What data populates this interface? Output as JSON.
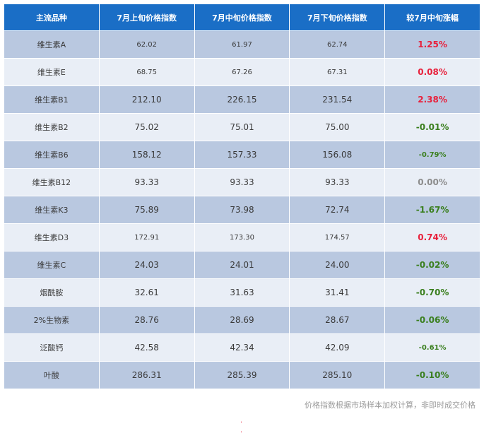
{
  "table": {
    "headers": [
      "主流品种",
      "7月上旬价格指数",
      "7月中旬价格指数",
      "7月下旬价格指数",
      "较7月中旬涨幅"
    ],
    "rows": [
      {
        "name": "维生素A",
        "v1": "62.02",
        "v2": "61.97",
        "v3": "62.74",
        "change": "1.25%",
        "trend": "up",
        "small": true
      },
      {
        "name": "维生素E",
        "v1": "68.75",
        "v2": "67.26",
        "v3": "67.31",
        "change": "0.08%",
        "trend": "up",
        "small": true
      },
      {
        "name": "维生素B1",
        "v1": "212.10",
        "v2": "226.15",
        "v3": "231.54",
        "change": "2.38%",
        "trend": "up",
        "small": false
      },
      {
        "name": "维生素B2",
        "v1": "75.02",
        "v2": "75.01",
        "v3": "75.00",
        "change": "-0.01%",
        "trend": "down",
        "small": false
      },
      {
        "name": "维生素B6",
        "v1": "158.12",
        "v2": "157.33",
        "v3": "156.08",
        "change": "-0.79%",
        "trend": "down",
        "small": false,
        "small_change": true
      },
      {
        "name": "维生素B12",
        "v1": "93.33",
        "v2": "93.33",
        "v3": "93.33",
        "change": "0.00%",
        "trend": "flat",
        "small": false
      },
      {
        "name": "维生素K3",
        "v1": "75.89",
        "v2": "73.98",
        "v3": "72.74",
        "change": "-1.67%",
        "trend": "down",
        "small": false
      },
      {
        "name": "维生素D3",
        "v1": "172.91",
        "v2": "173.30",
        "v3": "174.57",
        "change": "0.74%",
        "trend": "up",
        "small": true
      },
      {
        "name": "维生素C",
        "v1": "24.03",
        "v2": "24.01",
        "v3": "24.00",
        "change": "-0.02%",
        "trend": "down",
        "small": false
      },
      {
        "name": "烟酰胺",
        "v1": "32.61",
        "v2": "31.63",
        "v3": "31.41",
        "change": "-0.70%",
        "trend": "down",
        "small": false
      },
      {
        "name": "2%生物素",
        "v1": "28.76",
        "v2": "28.69",
        "v3": "28.67",
        "change": "-0.06%",
        "trend": "down",
        "small": false
      },
      {
        "name": "泛酸钙",
        "v1": "42.58",
        "v2": "42.34",
        "v3": "42.09",
        "change": "-0.61%",
        "trend": "down",
        "small": false,
        "small_change": true
      },
      {
        "name": "叶酸",
        "v1": "286.31",
        "v2": "285.39",
        "v3": "285.10",
        "change": "-0.10%",
        "trend": "down",
        "small": false
      }
    ]
  },
  "footnote": "价格指数根据市场样本加权计算，非即时成交价格",
  "colors": {
    "header_bg": "#1a6ec6",
    "row_odd": "#b9c8e0",
    "row_even": "#e9eef6",
    "up": "#e8213c",
    "down": "#3a7f1e",
    "flat": "#8c8c8c"
  }
}
